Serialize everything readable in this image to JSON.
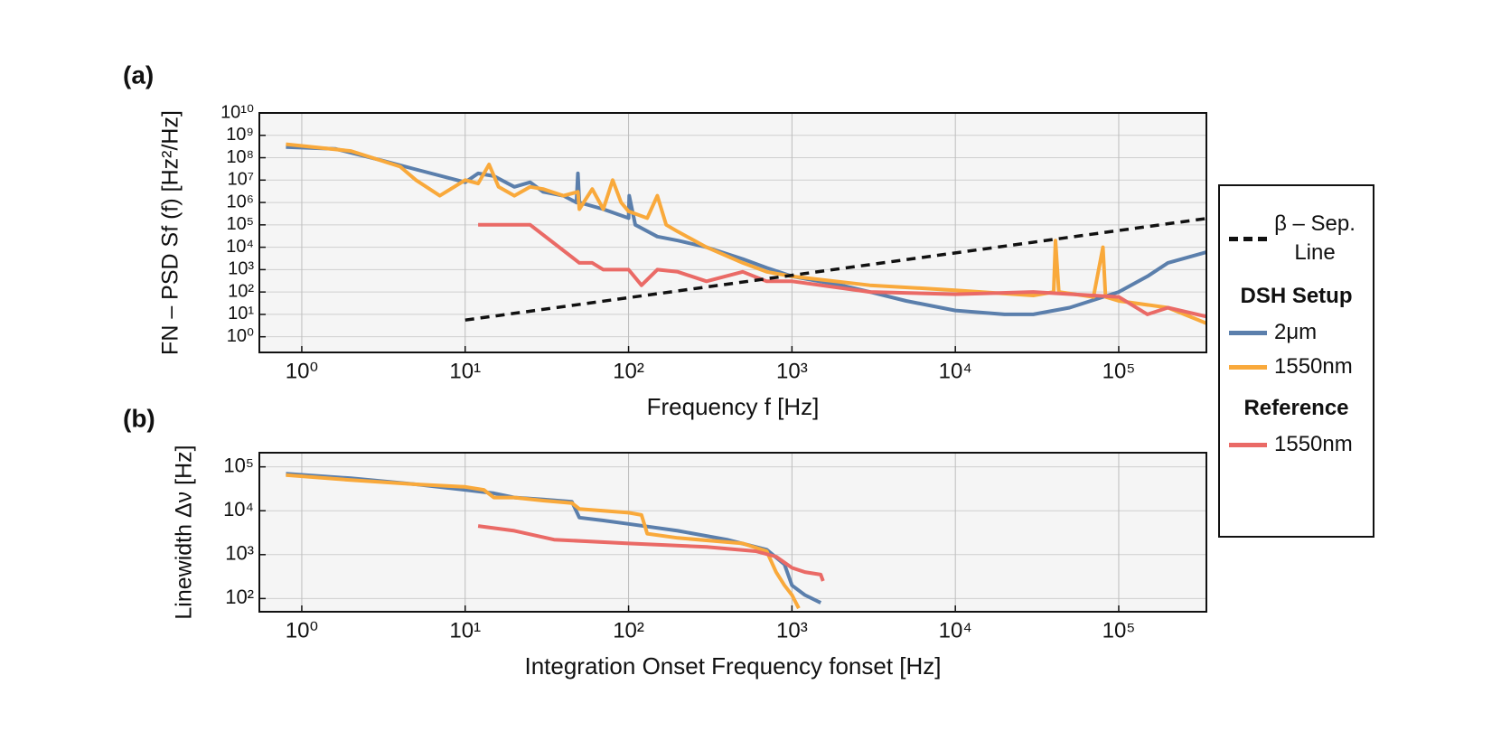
{
  "chart_data": [
    {
      "type": "line",
      "panel_label": "(a)",
      "xlabel": "Frequency f [Hz]",
      "ylabel": "FN – PSD Sf (f) [Hz²/Hz]",
      "xscale": "log",
      "yscale": "log",
      "grid": true,
      "xlim": [
        0.55,
        344000
      ],
      "ylim": [
        0.2,
        10000000000
      ],
      "xticks": [
        {
          "value": 1,
          "label": "10⁰"
        },
        {
          "value": 10,
          "label": "10¹"
        },
        {
          "value": 100,
          "label": "10²"
        },
        {
          "value": 1000,
          "label": "10³"
        },
        {
          "value": 10000,
          "label": "10⁴"
        },
        {
          "value": 100000,
          "label": "10⁵"
        }
      ],
      "yticks": [
        {
          "value": 1,
          "label": "10⁰"
        },
        {
          "value": 10,
          "label": "10¹"
        },
        {
          "value": 100,
          "label": "10²"
        },
        {
          "value": 1000,
          "label": "10³"
        },
        {
          "value": 10000,
          "label": "10⁴"
        },
        {
          "value": 100000,
          "label": "10⁵"
        },
        {
          "value": 1000000,
          "label": "10⁶"
        },
        {
          "value": 10000000,
          "label": "10⁷"
        },
        {
          "value": 100000000,
          "label": "10⁸"
        },
        {
          "value": 1000000000,
          "label": "10⁹"
        },
        {
          "value": 10000000000,
          "label": "10¹⁰"
        }
      ],
      "legend_groups": [
        "DSH Setup",
        "Reference"
      ],
      "series": [
        {
          "name": "2μm",
          "color": "#5b7fac",
          "x": [
            0.8,
            1.6,
            3,
            5,
            10,
            12,
            15,
            20,
            25,
            30,
            40,
            48,
            49,
            50,
            70,
            100,
            101,
            110,
            150,
            200,
            300,
            500,
            700,
            1000,
            2000,
            3000,
            5000,
            10000,
            20000,
            30000,
            50000,
            100000,
            150000,
            200000,
            344000
          ],
          "values": [
            300000000,
            250000000,
            80000000,
            30000000,
            8000000,
            20000000,
            15000000,
            5000000,
            8000000,
            3000000,
            2000000,
            1000000,
            20000000,
            1000000,
            500000,
            200000,
            2000000,
            100000,
            30000,
            20000,
            10000,
            3000,
            1200,
            500,
            200,
            100,
            40,
            15,
            10,
            10,
            20,
            100,
            500,
            2000,
            6000
          ]
        },
        {
          "name": "1550nm",
          "color": "#f9a93b",
          "x": [
            0.8,
            2,
            4,
            5,
            7,
            10,
            12,
            14,
            16,
            20,
            25,
            30,
            40,
            49,
            50,
            60,
            70,
            80,
            90,
            100,
            130,
            150,
            170,
            200,
            300,
            500,
            700,
            1000,
            3000,
            10000,
            30000,
            40000,
            41000,
            43000,
            70000,
            80000,
            83000,
            100000,
            200000,
            344000
          ],
          "values": [
            400000000,
            200000000,
            40000000,
            10000000,
            2000000,
            10000000,
            7000000,
            50000000,
            5000000,
            2000000,
            5000000,
            4000000,
            2000000,
            3000000,
            500000,
            4000000,
            500000,
            10000000,
            1000000,
            400000,
            200000,
            2000000,
            100000,
            50000,
            10000,
            2000,
            800,
            500,
            200,
            120,
            70,
            100,
            20000,
            100,
            60,
            10000,
            60,
            40,
            20,
            4
          ]
        },
        {
          "name": "1550nm",
          "color": "#ea6a66",
          "x": [
            12,
            25,
            50,
            60,
            70,
            100,
            120,
            150,
            200,
            300,
            500,
            700,
            1000,
            3000,
            10000,
            30000,
            100000,
            150000,
            200000,
            344000
          ],
          "values": [
            100000,
            100000,
            2000,
            2000,
            1000,
            1000,
            200,
            1000,
            800,
            300,
            800,
            300,
            300,
            100,
            80,
            100,
            60,
            10,
            20,
            8
          ]
        },
        {
          "name": "β – Sep. Line",
          "color": "#111111",
          "linestyle": "dashed",
          "x": [
            10,
            344000
          ],
          "values": [
            5.6,
            192640
          ]
        }
      ]
    },
    {
      "type": "line",
      "panel_label": "(b)",
      "xlabel": "Integration Onset Frequency fonset [Hz]",
      "ylabel": "Linewidth Δν [Hz]",
      "xscale": "log",
      "yscale": "log",
      "grid": true,
      "xlim": [
        0.55,
        344000
      ],
      "ylim": [
        50,
        210000
      ],
      "xticks": [
        {
          "value": 1,
          "label": "10⁰"
        },
        {
          "value": 10,
          "label": "10¹"
        },
        {
          "value": 100,
          "label": "10²"
        },
        {
          "value": 1000,
          "label": "10³"
        },
        {
          "value": 10000,
          "label": "10⁴"
        },
        {
          "value": 100000,
          "label": "10⁵"
        }
      ],
      "yticks": [
        {
          "value": 100,
          "label": "10²"
        },
        {
          "value": 1000,
          "label": "10³"
        },
        {
          "value": 10000,
          "label": "10⁴"
        },
        {
          "value": 100000,
          "label": "10⁵"
        }
      ],
      "series": [
        {
          "name": "2μm",
          "color": "#5b7fac",
          "x": [
            0.8,
            2,
            5,
            10,
            15,
            20,
            30,
            45,
            50,
            70,
            100,
            200,
            400,
            700,
            900,
            1000,
            1200,
            1500
          ],
          "values": [
            70000,
            55000,
            40000,
            30000,
            25000,
            20000,
            18000,
            16000,
            7000,
            6000,
            5000,
            3500,
            2200,
            1300,
            600,
            200,
            120,
            80
          ]
        },
        {
          "name": "1550nm",
          "color": "#f9a93b",
          "x": [
            0.8,
            2,
            5,
            10,
            13,
            15,
            20,
            30,
            45,
            50,
            100,
            120,
            130,
            200,
            500,
            700,
            800,
            900,
            1000,
            1100
          ],
          "values": [
            65000,
            50000,
            40000,
            35000,
            30000,
            20000,
            20000,
            17000,
            15000,
            11000,
            9000,
            8000,
            3000,
            2400,
            1800,
            1200,
            400,
            200,
            120,
            60
          ]
        },
        {
          "name": "1550nm",
          "color": "#ea6a66",
          "x": [
            12,
            20,
            35,
            100,
            300,
            600,
            800,
            1000,
            1200,
            1500,
            1550
          ],
          "values": [
            4500,
            3500,
            2200,
            1800,
            1500,
            1200,
            900,
            500,
            400,
            350,
            250
          ]
        }
      ]
    }
  ]
}
